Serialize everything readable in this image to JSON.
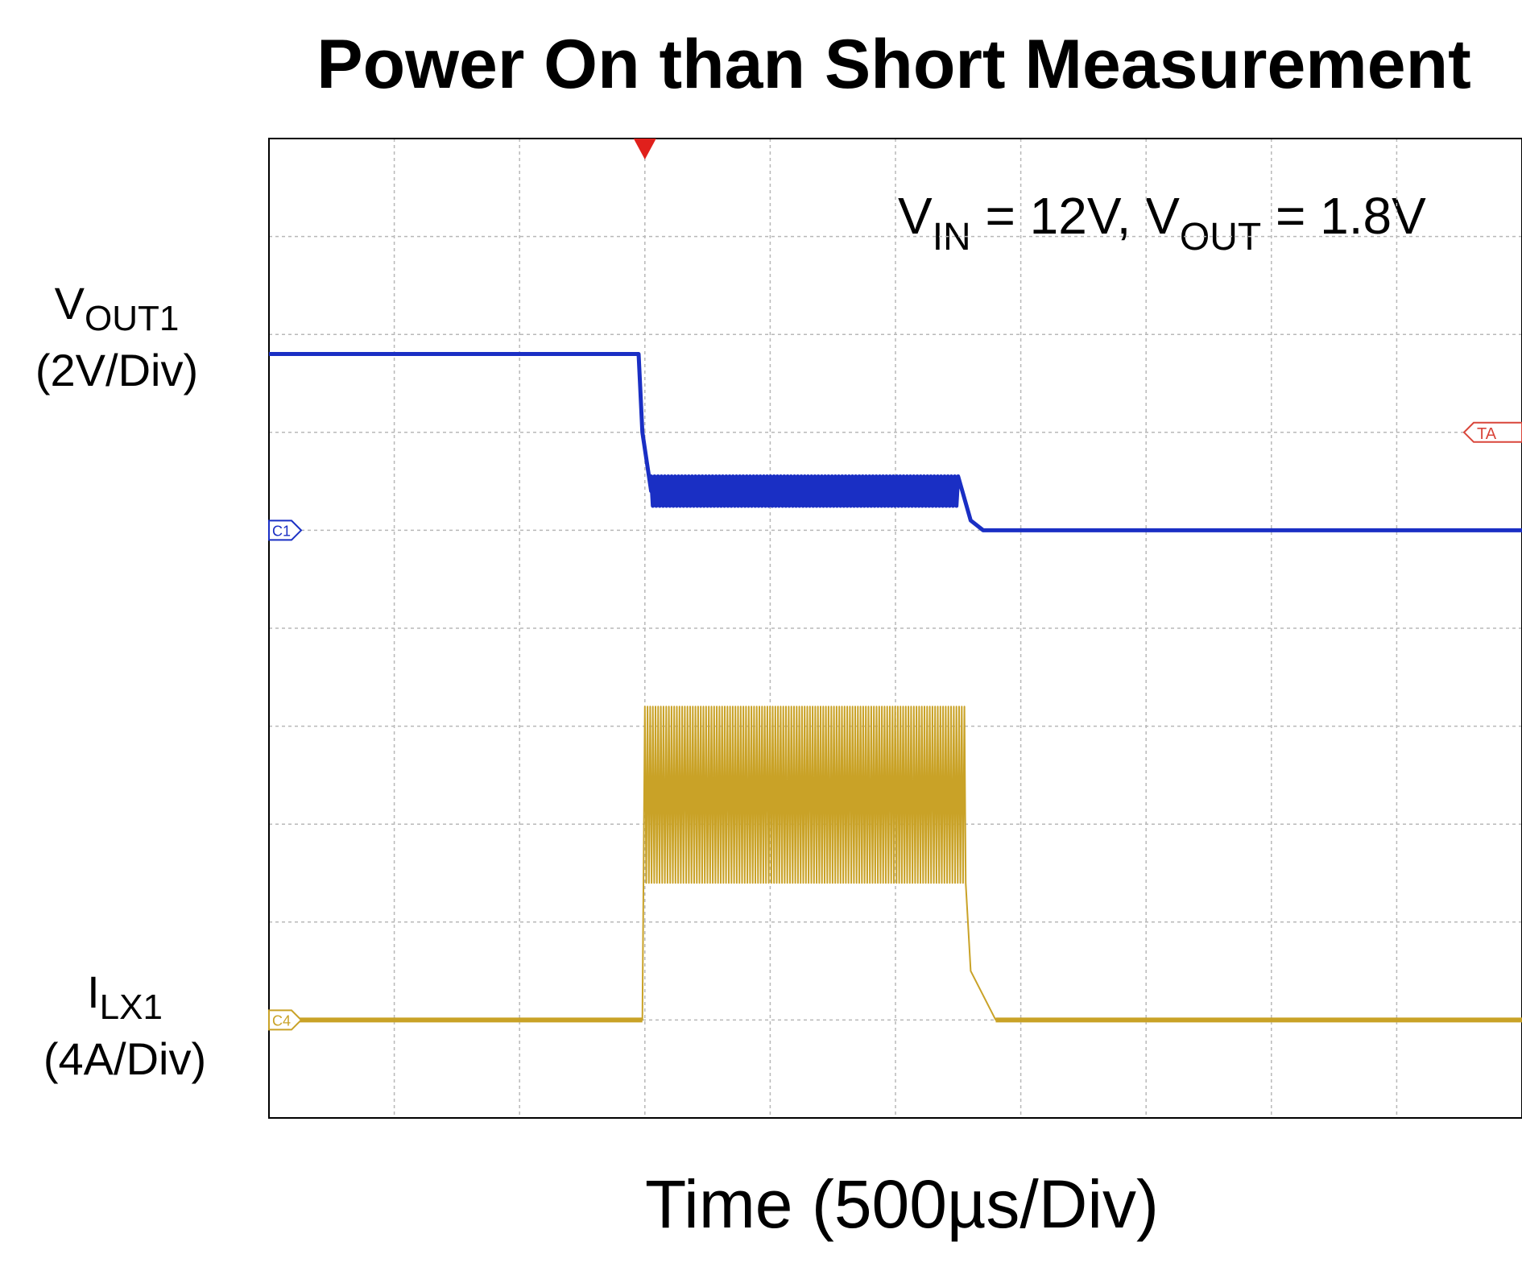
{
  "chart_data": {
    "type": "line",
    "title": "Power On than Short Measurement",
    "xlabel": "Time (500µs/Div)",
    "condition": {
      "vin_symbol": "V",
      "vin_sub": "IN",
      "vin_value": " = 12V, ",
      "vout_symbol": "V",
      "vout_sub": "OUT",
      "vout_value": " = 1.8V"
    },
    "grid": true,
    "x_divisions": 10,
    "y_divisions": 10,
    "xlim_div": [
      0,
      10
    ],
    "ylim_div": [
      0,
      10
    ],
    "series": [
      {
        "name": "VOUT1",
        "label_symbol": "V",
        "label_sub": "OUT1",
        "scale_label": "(2V/Div)",
        "color": "#1a2fc4",
        "channel_marker": "C1",
        "x_div": [
          0,
          2.95,
          2.98,
          3.05,
          5.5,
          5.6,
          5.7,
          10
        ],
        "y_div": [
          7.8,
          7.8,
          7.0,
          6.4,
          6.4,
          6.1,
          6.0,
          6.0
        ],
        "ripple_region_div": [
          3.05,
          5.5
        ],
        "ripple_amplitude_div": 0.15
      },
      {
        "name": "ILX1",
        "label_symbol": "I",
        "label_sub": "LX1",
        "scale_label": "(4A/Div)",
        "color": "#c9a227",
        "channel_marker": "C4",
        "x_div": [
          0,
          2.98,
          3.0,
          5.55,
          5.6,
          5.8,
          10
        ],
        "y_div": [
          1.0,
          1.0,
          3.0,
          3.0,
          1.5,
          1.0,
          1.0
        ],
        "ripple_region_div": [
          3.0,
          5.55
        ],
        "ripple_low_div": 2.4,
        "ripple_high_div": 4.2
      }
    ],
    "trigger_marker": {
      "x_div": 3.0,
      "color": "#e0201c"
    },
    "trigger_level_marker": {
      "label": "TA",
      "y_div": 7.0,
      "color": "#d9453a"
    }
  }
}
